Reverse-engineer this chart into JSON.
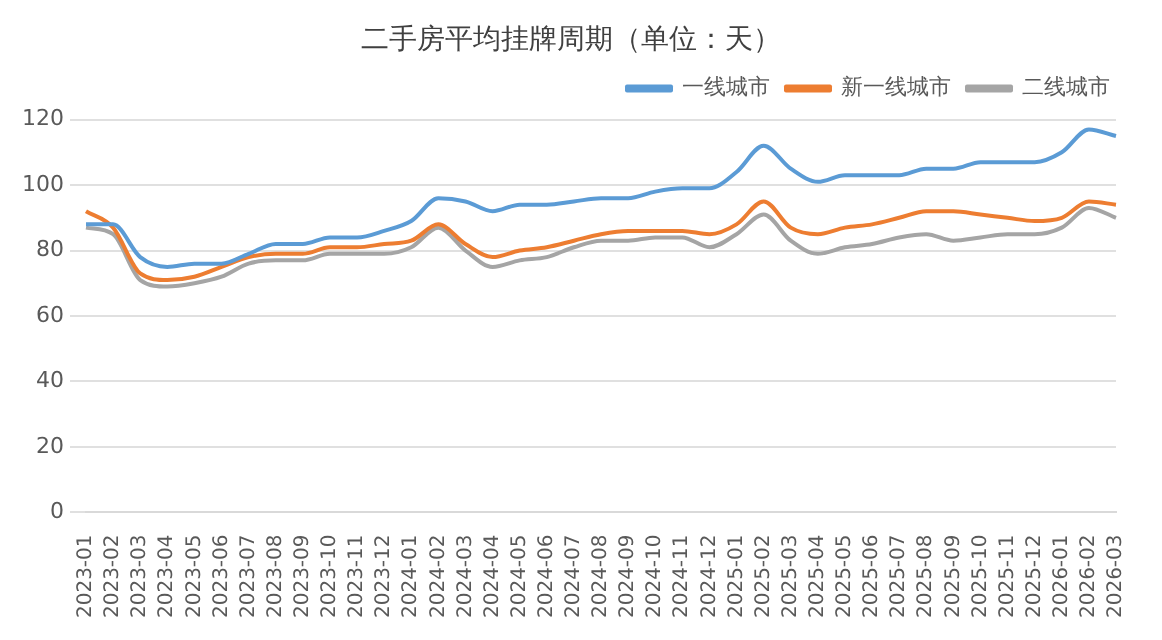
{
  "chart_data": {
    "type": "line",
    "title": "二手房平均挂牌周期（单位：天）",
    "categories": [
      "2023-01",
      "2023-02",
      "2023-03",
      "2023-04",
      "2023-05",
      "2023-06",
      "2023-07",
      "2023-08",
      "2023-09",
      "2023-10",
      "2023-11",
      "2023-12",
      "2024-01",
      "2024-02",
      "2024-03",
      "2024-04",
      "2024-05",
      "2024-06",
      "2024-07",
      "2024-08",
      "2024-09",
      "2024-10",
      "2024-11",
      "2024-12",
      "2025-01",
      "2025-02",
      "2025-03",
      "2025-04",
      "2025-05",
      "2025-06",
      "2025-07",
      "2025-08",
      "2025-09",
      "2025-10",
      "2025-11",
      "2025-12",
      "2026-01",
      "2026-02",
      "2026-03"
    ],
    "series": [
      {
        "name": "一线城市",
        "color": "#5b9bd5",
        "values": [
          88,
          88,
          78,
          75,
          76,
          76,
          79,
          82,
          82,
          84,
          84,
          86,
          89,
          96,
          95,
          92,
          94,
          94,
          95,
          96,
          96,
          98,
          99,
          99,
          104,
          112,
          105,
          101,
          103,
          103,
          103,
          105,
          105,
          107,
          107,
          107,
          110,
          117,
          115
        ]
      },
      {
        "name": "新一线城市",
        "color": "#ed7d31",
        "values": [
          92,
          87,
          73,
          71,
          72,
          75,
          78,
          79,
          79,
          81,
          81,
          82,
          83,
          88,
          82,
          78,
          80,
          81,
          83,
          85,
          86,
          86,
          86,
          85,
          88,
          95,
          87,
          85,
          87,
          88,
          90,
          92,
          92,
          91,
          90,
          89,
          90,
          95,
          94
        ]
      },
      {
        "name": "二线城市",
        "color": "#a5a5a5",
        "values": [
          87,
          85,
          71,
          69,
          70,
          72,
          76,
          77,
          77,
          79,
          79,
          79,
          81,
          87,
          80,
          75,
          77,
          78,
          81,
          83,
          83,
          84,
          84,
          81,
          85,
          91,
          83,
          79,
          81,
          82,
          84,
          85,
          83,
          84,
          85,
          85,
          87,
          93,
          90
        ]
      }
    ],
    "ylim": [
      0,
      120
    ],
    "yticks": [
      0,
      20,
      40,
      60,
      80,
      100,
      120
    ],
    "grid": "y",
    "legend": "top",
    "marker": "none",
    "line_style": "solid"
  }
}
